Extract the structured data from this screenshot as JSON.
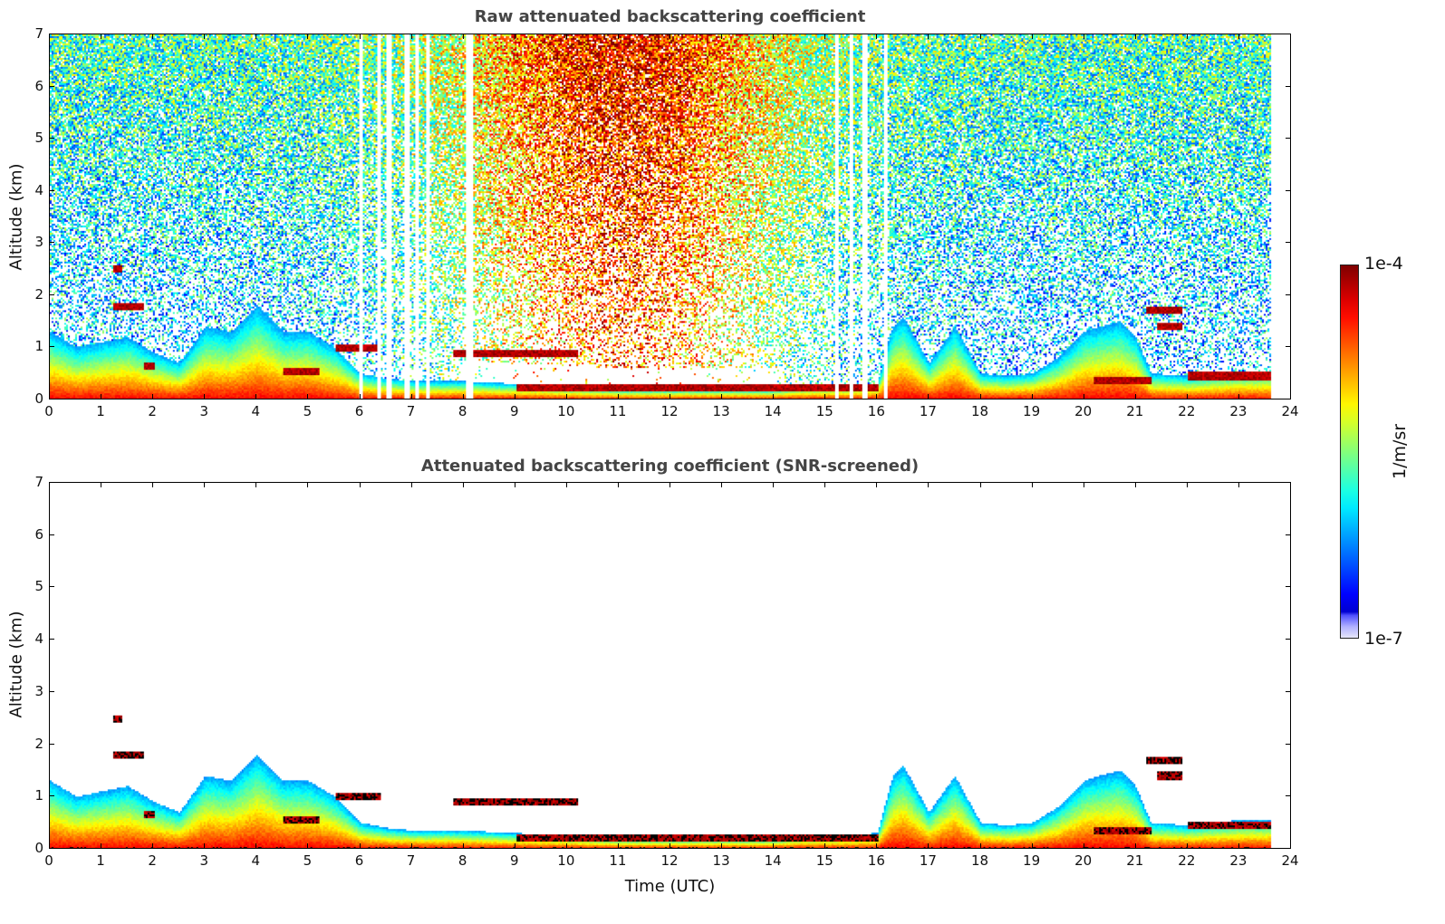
{
  "chart_data": [
    {
      "type": "heatmap",
      "id": "raw",
      "title": "Raw attenuated backscattering coefficient",
      "xlabel": "",
      "ylabel": "Altitude (km)",
      "xlim": [
        0,
        24
      ],
      "ylim": [
        0,
        7
      ],
      "xticks": [
        0,
        1,
        2,
        3,
        4,
        5,
        6,
        7,
        8,
        9,
        10,
        11,
        12,
        13,
        14,
        15,
        16,
        17,
        18,
        19,
        20,
        21,
        22,
        23,
        24
      ],
      "yticks": [
        0,
        1,
        2,
        3,
        4,
        5,
        6,
        7
      ],
      "data_end_time": 23.6,
      "boundary_layer_top_km": {
        "time": [
          0,
          0.5,
          1,
          1.5,
          2,
          2.5,
          3,
          3.5,
          4,
          4.5,
          5,
          5.5,
          6,
          6.5,
          7,
          8,
          9,
          10,
          11,
          12,
          13,
          14,
          14.5,
          15,
          16,
          16.3,
          16.5,
          17,
          17.5,
          18,
          18.5,
          19,
          19.5,
          20,
          20.3,
          20.7,
          21,
          21.3,
          22,
          23,
          23.6
        ],
        "height": [
          1.3,
          1.0,
          1.1,
          1.2,
          0.9,
          0.7,
          1.4,
          1.3,
          1.8,
          1.3,
          1.3,
          1.0,
          0.5,
          0.4,
          0.35,
          0.35,
          0.3,
          0.25,
          0.2,
          0.2,
          0.2,
          0.2,
          0.25,
          0.25,
          0.3,
          1.4,
          1.6,
          0.7,
          1.4,
          0.5,
          0.45,
          0.5,
          0.8,
          1.3,
          1.4,
          1.5,
          1.2,
          0.5,
          0.45,
          0.55,
          0.55
        ]
      },
      "cloud_layers": [
        {
          "start": 1.2,
          "end": 1.8,
          "alt_km": 1.8
        },
        {
          "start": 1.2,
          "end": 1.4,
          "alt_km": 2.5
        },
        {
          "start": 1.8,
          "end": 2.0,
          "alt_km": 0.65
        },
        {
          "start": 4.5,
          "end": 5.2,
          "alt_km": 0.55
        },
        {
          "start": 5.5,
          "end": 6.4,
          "alt_km": 1.0
        },
        {
          "start": 7.8,
          "end": 10.2,
          "alt_km": 0.9
        },
        {
          "start": 9.0,
          "end": 16.0,
          "alt_km": 0.22
        },
        {
          "start": 20.2,
          "end": 21.3,
          "alt_km": 0.35
        },
        {
          "start": 21.2,
          "end": 21.9,
          "alt_km": 1.7
        },
        {
          "start": 21.4,
          "end": 21.9,
          "alt_km": 1.4
        },
        {
          "start": 22.0,
          "end": 23.6,
          "alt_km": 0.45
        }
      ],
      "data_gaps_utc": [
        6.0,
        6.35,
        6.55,
        6.9,
        7.1,
        7.3,
        8.1,
        15.2,
        15.5,
        15.75,
        16.15
      ]
    },
    {
      "type": "heatmap",
      "id": "snr",
      "title": "Attenuated backscattering coefficient (SNR-screened)",
      "xlabel": "Time (UTC)",
      "ylabel": "Altitude (km)",
      "xlim": [
        0,
        24
      ],
      "ylim": [
        0,
        7
      ],
      "xticks": [
        0,
        1,
        2,
        3,
        4,
        5,
        6,
        7,
        8,
        9,
        10,
        11,
        12,
        13,
        14,
        15,
        16,
        17,
        18,
        19,
        20,
        21,
        22,
        23,
        24
      ],
      "yticks": [
        0,
        1,
        2,
        3,
        4,
        5,
        6,
        7
      ],
      "screened": true
    }
  ],
  "colorbar": {
    "label": "1/m/sr",
    "max_label": "1e-4",
    "min_label": "1e-7",
    "range": [
      1e-07,
      0.0001
    ],
    "scale": "log",
    "colormap": "jet"
  }
}
